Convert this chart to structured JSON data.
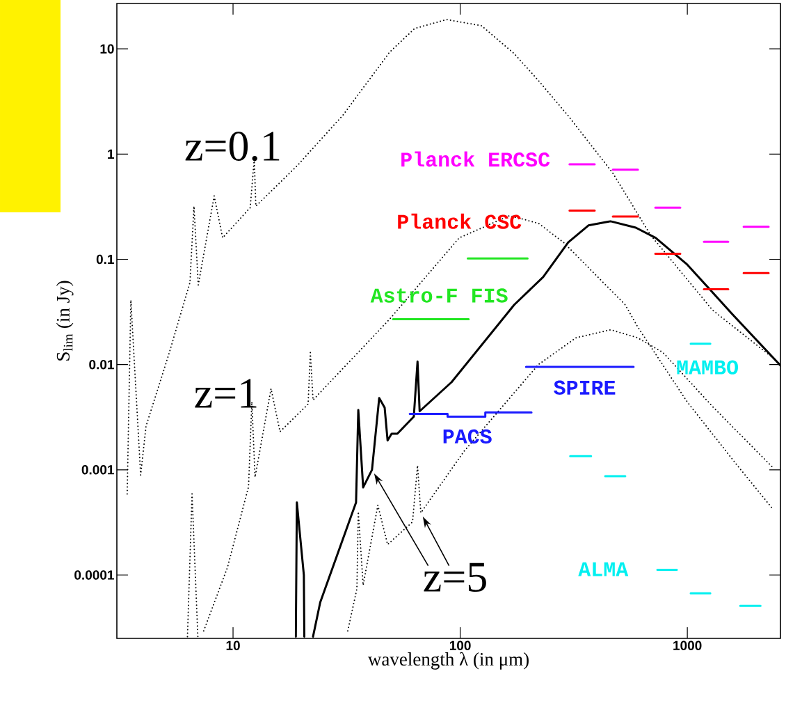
{
  "chart_data": {
    "type": "line",
    "xlabel": "wavelength λ (in μm)",
    "ylabel": "S$_{lim}$ (in Jy)",
    "log": "xy",
    "marker": "none",
    "xlim": [
      3.08,
      2570
    ],
    "ylim": [
      2.5e-05,
      27
    ],
    "xticks": [
      10,
      100,
      1000
    ],
    "yticks": [
      0.0001,
      0.001,
      0.01,
      0.1,
      1,
      10
    ],
    "annotations": [
      "z=0.1",
      "z=1",
      "z=5"
    ],
    "series": [
      {
        "color": "#000000",
        "line_style": "dotted",
        "x": [
          3.42,
          3.55,
          3.92,
          4.14,
          5.22,
          6.46,
          6.73,
          7.03,
          8.26,
          9.0,
          11.9,
          12.4,
          12.6,
          19.1,
          30.5,
          48.9,
          63,
          87,
          124,
          173,
          221,
          299,
          470,
          689,
          1290,
          2366
        ],
        "values": [
          0.00059,
          0.041,
          0.00089,
          0.0026,
          0.0126,
          0.06,
          0.32,
          0.057,
          0.4,
          0.16,
          0.31,
          0.9,
          0.32,
          0.77,
          2.35,
          9.3,
          15.6,
          19,
          16.6,
          9.0,
          5.0,
          2.31,
          0.66,
          0.17,
          0.033,
          0.0117
        ]
      },
      {
        "color": "#000000",
        "line_style": "dotted",
        "x": [
          6.3,
          6.6,
          7.0,
          null,
          7.43,
          9.45,
          11.7,
          12.1,
          12.5,
          14.7,
          16.1,
          21.4,
          21.9,
          22.5,
          48.9,
          99,
          165,
          221,
          285,
          533,
          603,
          1000,
          1660,
          2366
        ],
        "values": [
          2.6e-05,
          0.00059,
          2.6e-05,
          null,
          2.95e-05,
          0.000118,
          0.00069,
          0.0044,
          0.00085,
          0.0059,
          0.0023,
          0.0042,
          0.013,
          0.0046,
          0.027,
          0.16,
          0.26,
          0.22,
          0.145,
          0.037,
          0.023,
          0.0044,
          0.0011,
          0.00043
        ]
      },
      {
        "color": "#000000",
        "line_style": "dotted",
        "x": [
          32,
          35.1,
          35.6,
          37.4,
          43.4,
          47.9,
          61.7,
          64.9,
          67.1,
          104,
          221,
          324,
          460,
          603,
          782,
          1290,
          2360
        ],
        "values": [
          2.95e-05,
          7.4e-05,
          0.0004,
          8e-05,
          0.00046,
          0.000195,
          0.00032,
          0.0011,
          0.00039,
          0.0015,
          0.01,
          0.018,
          0.0214,
          0.018,
          0.013,
          0.004,
          0.00107
        ]
      },
      {
        "color": "#000000",
        "line_style": "solid",
        "x": [
          18.9,
          19.1,
          20.5,
          20.6,
          null,
          22.5,
          24.2,
          34.8,
          35.6,
          37.4,
          40.9,
          44,
          46.5,
          47.9,
          49.9,
          52.9,
          62.5,
          64.9,
          66.3,
          91.6,
          173,
          232,
          299,
          367,
          460,
          593,
          725,
          1000,
          1580,
          2570
        ],
        "values": [
          2.6e-05,
          0.00049,
          0.0001,
          2.6e-05,
          null,
          2.6e-05,
          5.5e-05,
          0.00049,
          0.0037,
          0.00068,
          0.001,
          0.0048,
          0.0039,
          0.0019,
          0.0022,
          0.0022,
          0.0032,
          0.0107,
          0.0036,
          0.0068,
          0.037,
          0.068,
          0.145,
          0.21,
          0.23,
          0.2,
          0.16,
          0.089,
          0.03,
          0.0098
        ]
      },
      {
        "name": "Planck ERCSC",
        "color": "#ff00ff",
        "line_style": "solid",
        "x": [
          303,
          391,
          null,
          470,
          606,
          null,
          723,
          931,
          null,
          1183,
          1514,
          null,
          1770,
          2280
        ],
        "values": [
          0.8,
          0.8,
          null,
          0.71,
          0.71,
          null,
          0.31,
          0.31,
          null,
          0.147,
          0.147,
          null,
          0.204,
          0.204
        ]
      },
      {
        "name": "Planck CSC",
        "color": "#ff0000",
        "line_style": "solid",
        "x": [
          303,
          391,
          null,
          470,
          606,
          null,
          723,
          931,
          null,
          1183,
          1514,
          null,
          1770,
          2280
        ],
        "values": [
          0.29,
          0.29,
          null,
          0.255,
          0.255,
          null,
          0.113,
          0.113,
          null,
          0.052,
          0.052,
          null,
          0.074,
          0.074
        ]
      },
      {
        "name": "Astro-F FIS",
        "color": "#22e622",
        "line_style": "solid",
        "x": [
          50.6,
          109,
          null,
          108,
          198
        ],
        "values": [
          0.027,
          0.027,
          null,
          0.102,
          0.102
        ]
      },
      {
        "name": "PACS",
        "color": "#1a1aff",
        "line_style": "solid",
        "x": [
          60,
          88,
          88,
          129,
          129,
          206
        ],
        "values": [
          0.0034,
          0.0034,
          0.0032,
          0.0032,
          0.0035,
          0.0035
        ]
      },
      {
        "name": "SPIRE",
        "color": "#1a1aff",
        "line_style": "solid",
        "x": [
          195,
          580
        ],
        "values": [
          0.0095,
          0.0095
        ]
      },
      {
        "name": "MAMBO",
        "color": "#00f0f0",
        "line_style": "solid",
        "x": [
          1035,
          1262
        ],
        "values": [
          0.0158,
          0.0158
        ]
      },
      {
        "name": "ALMA",
        "color": "#00f0f0",
        "line_style": "solid",
        "x": [
          305,
          377,
          null,
          435,
          533,
          null,
          738,
          899,
          null,
          1035,
          1262,
          null,
          1710,
          2100
        ],
        "values": [
          0.00135,
          0.00135,
          null,
          0.00087,
          0.00087,
          null,
          0.000112,
          0.000112,
          null,
          6.7e-05,
          6.7e-05,
          null,
          5.1e-05,
          5.1e-05
        ]
      }
    ]
  }
}
